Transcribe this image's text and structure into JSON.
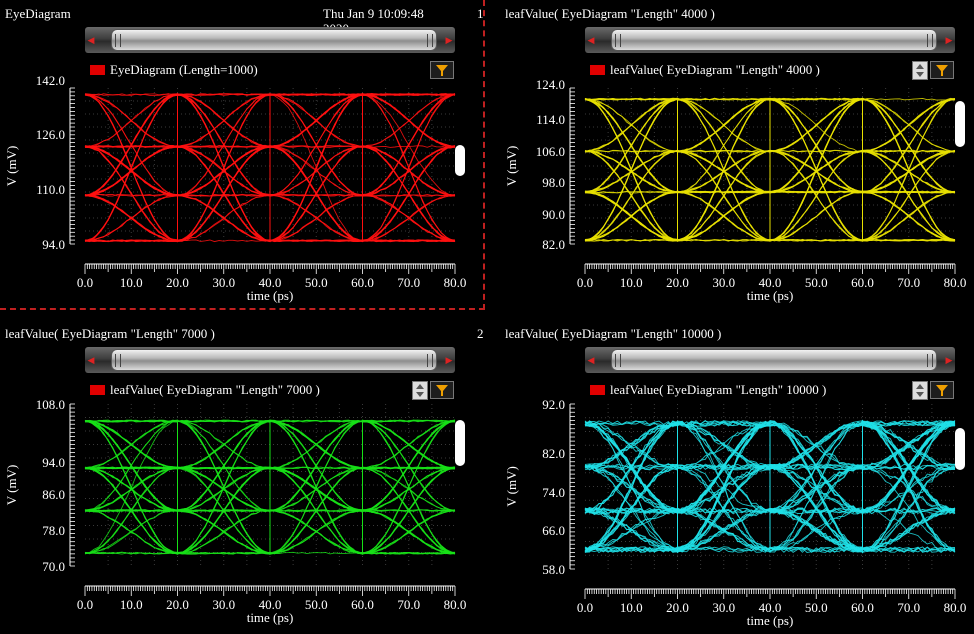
{
  "panels": [
    {
      "title": "EyeDiagram",
      "date": "Thu Jan 9 10:09:48",
      "date2": "2020",
      "number": "1",
      "legend": "EyeDiagram (Length=1000)",
      "selected": true,
      "updown": false,
      "color": "#ff1010"
    },
    {
      "title": "leafValue( EyeDiagram \"Length\" 4000 )",
      "legend": "leafValue( EyeDiagram \"Length\" 4000 )",
      "number": "",
      "selected": false,
      "updown": true,
      "color": "#e8e000"
    },
    {
      "title": "leafValue( EyeDiagram \"Length\" 7000 )",
      "legend": "leafValue( EyeDiagram \"Length\" 7000 )",
      "number": "2",
      "selected": false,
      "updown": true,
      "color": "#18e018"
    },
    {
      "title": "leafValue( EyeDiagram \"Length\" 10000 )",
      "legend": "leafValue( EyeDiagram \"Length\" 10000 )",
      "number": "",
      "selected": false,
      "updown": true,
      "color": "#20e0e8"
    }
  ],
  "icons": {
    "filter": "filter-funnel-icon",
    "left": "arrow-left-icon",
    "right": "arrow-right-icon",
    "updown": "spin-updown-icon"
  },
  "chart_data": [
    {
      "type": "line",
      "title": "EyeDiagram (Length=1000)",
      "xlabel": "time (ps)",
      "ylabel": "V (mV)",
      "xlim": [
        0,
        80
      ],
      "ylim": [
        94,
        142
      ],
      "xticks": [
        "0.0",
        "10.0",
        "20.0",
        "30.0",
        "40.0",
        "50.0",
        "60.0",
        "70.0",
        "80.0"
      ],
      "yticks": [
        "94.0",
        "110.0",
        "126.0",
        "142.0"
      ],
      "levels": [
        95,
        109,
        124,
        140
      ],
      "grid": true,
      "legend": "top-left"
    },
    {
      "type": "line",
      "title": "leafValue( EyeDiagram \"Length\" 4000 )",
      "xlabel": "time (ps)",
      "ylabel": "V (mV)",
      "xlim": [
        0,
        80
      ],
      "ylim": [
        82,
        124
      ],
      "xticks": [
        "0.0",
        "10.0",
        "20.0",
        "30.0",
        "40.0",
        "50.0",
        "60.0",
        "70.0",
        "80.0"
      ],
      "yticks": [
        "82.0",
        "90.0",
        "98.0",
        "106.0",
        "114.0",
        "124.0"
      ],
      "levels": [
        83,
        96,
        107,
        121
      ],
      "grid": true,
      "legend": "top-left"
    },
    {
      "type": "line",
      "title": "leafValue( EyeDiagram \"Length\" 7000 )",
      "xlabel": "time (ps)",
      "ylabel": "V (mV)",
      "xlim": [
        0,
        80
      ],
      "ylim": [
        70,
        108
      ],
      "xticks": [
        "0.0",
        "10.0",
        "20.0",
        "30.0",
        "40.0",
        "50.0",
        "60.0",
        "70.0",
        "80.0"
      ],
      "yticks": [
        "70.0",
        "78.0",
        "86.0",
        "94.0",
        "108.0"
      ],
      "levels": [
        73,
        83,
        93,
        104
      ],
      "grid": true,
      "legend": "top-left"
    },
    {
      "type": "line",
      "title": "leafValue( EyeDiagram \"Length\" 10000 )",
      "xlabel": "time (ps)",
      "ylabel": "V (mV)",
      "xlim": [
        0,
        80
      ],
      "ylim": [
        58,
        92
      ],
      "xticks": [
        "0.0",
        "10.0",
        "20.0",
        "30.0",
        "40.0",
        "50.0",
        "60.0",
        "70.0",
        "80.0"
      ],
      "yticks": [
        "58.0",
        "66.0",
        "74.0",
        "82.0",
        "92.0"
      ],
      "levels": [
        62,
        70,
        79,
        88
      ],
      "grid": true,
      "legend": "top-left"
    }
  ]
}
